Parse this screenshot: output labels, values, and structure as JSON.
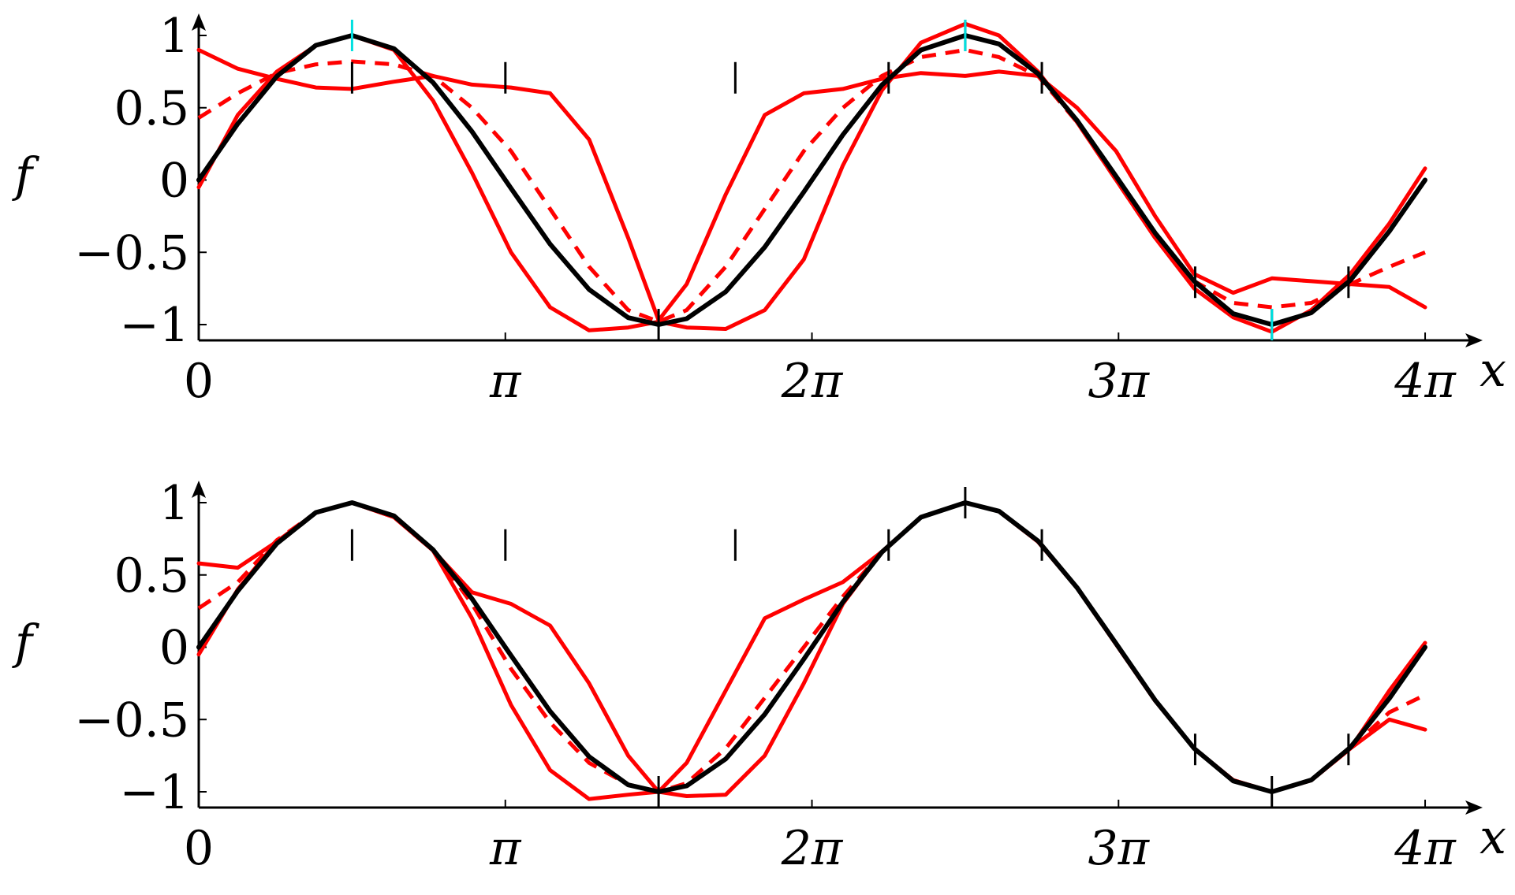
{
  "figure": {
    "background": "#ffffff",
    "colors": {
      "reference": "#000000",
      "approximation": "#ff0000",
      "marker": "#00e0e0"
    }
  },
  "chart_data": [
    {
      "type": "line",
      "panel": "top",
      "xlabel": "x",
      "ylabel": "f",
      "xlim": [
        0,
        12.566
      ],
      "ylim": [
        -1.1,
        1.1
      ],
      "x_ticks": [
        0,
        3.1416,
        6.2832,
        9.4248,
        12.5664
      ],
      "x_tick_labels": [
        "0",
        "π",
        "2π",
        "3π",
        "4π"
      ],
      "y_ticks": [
        1,
        0.5,
        0,
        -0.5,
        -1
      ],
      "y_tick_labels": [
        "1",
        "0.5",
        "0",
        "−0.5",
        "−1"
      ],
      "grid": false,
      "legend": "none",
      "sample_points": {
        "x": [
          1.571,
          3.142,
          4.712,
          5.498,
          7.069,
          7.854,
          8.639,
          10.21,
          10.996,
          11.781
        ],
        "y": [
          0.707,
          0.707,
          -1,
          0.707,
          0.707,
          1,
          0.707,
          -0.707,
          -1,
          -0.707
        ]
      },
      "highlight_points": {
        "x": [
          1.571,
          7.854,
          10.996
        ],
        "y": [
          1,
          1,
          -1
        ]
      },
      "series": [
        {
          "role": "reference",
          "style": "solid",
          "color": "#000000",
          "x": [
            0,
            0.4,
            0.8,
            1.2,
            1.571,
            2.0,
            2.4,
            2.8,
            3.2,
            3.6,
            4.0,
            4.4,
            4.712,
            5.0,
            5.4,
            5.8,
            6.2,
            6.6,
            7.0,
            7.4,
            7.854,
            8.2,
            8.6,
            9.0,
            9.4,
            9.8,
            10.2,
            10.6,
            10.996,
            11.4,
            11.8,
            12.2,
            12.566
          ],
          "y": [
            0.0,
            0.389,
            0.717,
            0.932,
            1.0,
            0.909,
            0.675,
            0.335,
            -0.058,
            -0.443,
            -0.757,
            -0.952,
            -1.0,
            -0.959,
            -0.773,
            -0.464,
            -0.083,
            0.312,
            0.657,
            0.899,
            1.0,
            0.941,
            0.735,
            0.412,
            0.025,
            -0.366,
            -0.7,
            -0.925,
            -1.0,
            -0.918,
            -0.693,
            -0.354,
            0.0
          ]
        },
        {
          "role": "approximation",
          "style": "dashed",
          "color": "#ff0000",
          "x": [
            0,
            0.4,
            0.8,
            1.2,
            1.571,
            2.0,
            2.4,
            2.8,
            3.2,
            3.6,
            4.0,
            4.4,
            4.712,
            5.0,
            5.4,
            5.8,
            6.2,
            6.6,
            7.0,
            7.4,
            7.854,
            8.2,
            8.6,
            9.0,
            9.4,
            9.8,
            10.2,
            10.6,
            10.996,
            11.4,
            11.8,
            12.2,
            12.566
          ],
          "y": [
            0.43,
            0.6,
            0.74,
            0.8,
            0.82,
            0.8,
            0.72,
            0.5,
            0.2,
            -0.2,
            -0.6,
            -0.9,
            -0.98,
            -0.9,
            -0.6,
            -0.2,
            0.2,
            0.5,
            0.72,
            0.85,
            0.9,
            0.85,
            0.72,
            0.4,
            0.0,
            -0.4,
            -0.7,
            -0.85,
            -0.88,
            -0.85,
            -0.72,
            -0.6,
            -0.5
          ]
        },
        {
          "role": "approximation",
          "style": "solid",
          "color": "#ff0000",
          "x": [
            0,
            0.4,
            0.8,
            1.2,
            1.571,
            2.0,
            2.4,
            2.8,
            3.2,
            3.6,
            4.0,
            4.4,
            4.712,
            5.0,
            5.4,
            5.8,
            6.2,
            6.6,
            7.0,
            7.4,
            7.854,
            8.2,
            8.6,
            9.0,
            9.4,
            9.8,
            10.2,
            10.6,
            10.996,
            11.4,
            11.8,
            12.2,
            12.566
          ],
          "y": [
            0.9,
            0.77,
            0.7,
            0.64,
            0.63,
            0.68,
            0.72,
            0.66,
            0.64,
            0.6,
            0.28,
            -0.4,
            -0.97,
            -0.72,
            -0.1,
            0.45,
            0.6,
            0.63,
            0.7,
            0.74,
            0.72,
            0.75,
            0.72,
            0.5,
            0.2,
            -0.25,
            -0.65,
            -0.78,
            -0.68,
            -0.7,
            -0.72,
            -0.74,
            -0.88
          ]
        },
        {
          "role": "approximation",
          "style": "solid",
          "color": "#ff0000",
          "x": [
            0,
            0.4,
            0.8,
            1.2,
            1.571,
            2.0,
            2.4,
            2.8,
            3.2,
            3.6,
            4.0,
            4.4,
            4.712,
            5.0,
            5.4,
            5.8,
            6.2,
            6.6,
            7.0,
            7.4,
            7.854,
            8.2,
            8.6,
            9.0,
            9.4,
            9.8,
            10.2,
            10.6,
            10.996,
            11.4,
            11.8,
            12.2,
            12.566
          ],
          "y": [
            -0.05,
            0.45,
            0.75,
            0.93,
            1.0,
            0.9,
            0.55,
            0.05,
            -0.5,
            -0.88,
            -1.04,
            -1.02,
            -0.98,
            -1.02,
            -1.03,
            -0.9,
            -0.55,
            0.1,
            0.62,
            0.95,
            1.08,
            1.0,
            0.75,
            0.4,
            0.0,
            -0.4,
            -0.75,
            -0.95,
            -1.05,
            -0.9,
            -0.65,
            -0.3,
            0.08
          ]
        }
      ]
    },
    {
      "type": "line",
      "panel": "bottom",
      "xlabel": "x",
      "ylabel": "f",
      "xlim": [
        0,
        12.566
      ],
      "ylim": [
        -1.1,
        1.1
      ],
      "x_ticks": [
        0,
        3.1416,
        6.2832,
        9.4248,
        12.5664
      ],
      "x_tick_labels": [
        "0",
        "π",
        "2π",
        "3π",
        "4π"
      ],
      "y_ticks": [
        1,
        0.5,
        0,
        -0.5,
        -1
      ],
      "y_tick_labels": [
        "1",
        "0.5",
        "0",
        "−0.5",
        "−1"
      ],
      "grid": false,
      "legend": "none",
      "sample_points": {
        "x": [
          1.571,
          3.142,
          4.712,
          5.498,
          7.069,
          7.854,
          8.639,
          10.21,
          10.996,
          11.781
        ],
        "y": [
          0.707,
          0.707,
          -1,
          0.707,
          0.707,
          1,
          0.707,
          -0.707,
          -1,
          -0.707
        ]
      },
      "highlight_points": {
        "x": [],
        "y": []
      },
      "series": [
        {
          "role": "reference",
          "style": "solid",
          "color": "#000000",
          "x": [
            0,
            0.4,
            0.8,
            1.2,
            1.571,
            2.0,
            2.4,
            2.8,
            3.2,
            3.6,
            4.0,
            4.4,
            4.712,
            5.0,
            5.4,
            5.8,
            6.2,
            6.6,
            7.0,
            7.4,
            7.854,
            8.2,
            8.6,
            9.0,
            9.4,
            9.8,
            10.2,
            10.6,
            10.996,
            11.4,
            11.8,
            12.2,
            12.566
          ],
          "y": [
            0.0,
            0.389,
            0.717,
            0.932,
            1.0,
            0.909,
            0.675,
            0.335,
            -0.058,
            -0.443,
            -0.757,
            -0.952,
            -1.0,
            -0.959,
            -0.773,
            -0.464,
            -0.083,
            0.312,
            0.657,
            0.899,
            1.0,
            0.941,
            0.735,
            0.412,
            0.025,
            -0.366,
            -0.7,
            -0.925,
            -1.0,
            -0.918,
            -0.693,
            -0.354,
            0.0
          ]
        },
        {
          "role": "approximation",
          "style": "dashed",
          "color": "#ff0000",
          "x": [
            0,
            0.4,
            0.8,
            1.2,
            1.571,
            2.0,
            2.4,
            2.8,
            3.2,
            3.6,
            4.0,
            4.4,
            4.712,
            5.0,
            5.4,
            5.8,
            6.2,
            6.6,
            7.0,
            7.4,
            7.854,
            8.2,
            8.6,
            9.0,
            9.4,
            9.8,
            10.2,
            10.6,
            10.996,
            11.4,
            11.8,
            12.2,
            12.566
          ],
          "y": [
            0.27,
            0.45,
            0.74,
            0.93,
            1.0,
            0.9,
            0.67,
            0.3,
            -0.15,
            -0.52,
            -0.8,
            -0.95,
            -1.0,
            -0.94,
            -0.7,
            -0.35,
            0.0,
            0.35,
            0.66,
            0.9,
            1.0,
            0.94,
            0.73,
            0.41,
            0.02,
            -0.37,
            -0.7,
            -0.92,
            -1.0,
            -0.92,
            -0.7,
            -0.45,
            -0.33
          ]
        },
        {
          "role": "approximation",
          "style": "solid",
          "color": "#ff0000",
          "x": [
            0,
            0.4,
            0.8,
            1.2,
            1.571,
            2.0,
            2.4,
            2.8,
            3.2,
            3.6,
            4.0,
            4.4,
            4.712,
            5.0,
            5.4,
            5.8,
            6.2,
            6.6,
            7.0,
            7.4,
            7.854,
            8.2,
            8.6,
            9.0,
            9.4,
            9.8,
            10.2,
            10.6,
            10.996,
            11.4,
            11.8,
            12.2,
            12.566
          ],
          "y": [
            0.58,
            0.55,
            0.73,
            0.93,
            1.0,
            0.9,
            0.67,
            0.38,
            0.3,
            0.15,
            -0.25,
            -0.75,
            -1.0,
            -0.8,
            -0.3,
            0.2,
            0.33,
            0.45,
            0.66,
            0.9,
            1.0,
            0.94,
            0.73,
            0.41,
            0.02,
            -0.37,
            -0.7,
            -0.92,
            -1.0,
            -0.92,
            -0.7,
            -0.5,
            -0.57
          ]
        },
        {
          "role": "approximation",
          "style": "solid",
          "color": "#ff0000",
          "x": [
            0,
            0.4,
            0.8,
            1.2,
            1.571,
            2.0,
            2.4,
            2.8,
            3.2,
            3.6,
            4.0,
            4.4,
            4.712,
            5.0,
            5.4,
            5.8,
            6.2,
            6.6,
            7.0,
            7.4,
            7.854,
            8.2,
            8.6,
            9.0,
            9.4,
            9.8,
            10.2,
            10.6,
            10.996,
            11.4,
            11.8,
            12.2,
            12.566
          ],
          "y": [
            -0.05,
            0.4,
            0.73,
            0.93,
            1.0,
            0.9,
            0.67,
            0.2,
            -0.4,
            -0.85,
            -1.05,
            -1.02,
            -1.0,
            -1.03,
            -1.02,
            -0.75,
            -0.25,
            0.3,
            0.66,
            0.9,
            1.0,
            0.94,
            0.73,
            0.41,
            0.02,
            -0.37,
            -0.7,
            -0.92,
            -1.0,
            -0.92,
            -0.7,
            -0.3,
            0.03
          ]
        }
      ]
    }
  ]
}
